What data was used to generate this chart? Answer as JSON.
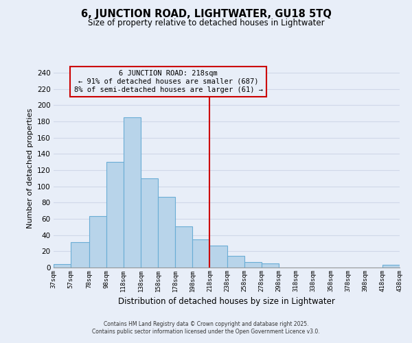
{
  "title": "6, JUNCTION ROAD, LIGHTWATER, GU18 5TQ",
  "subtitle": "Size of property relative to detached houses in Lightwater",
  "xlabel": "Distribution of detached houses by size in Lightwater",
  "ylabel": "Number of detached properties",
  "bin_edges": [
    37,
    57,
    78,
    98,
    118,
    138,
    158,
    178,
    198,
    218,
    238,
    258,
    278,
    298,
    318,
    338,
    358,
    378,
    398,
    418,
    438
  ],
  "bin_counts": [
    4,
    31,
    63,
    130,
    185,
    110,
    87,
    51,
    35,
    27,
    14,
    7,
    5,
    0,
    0,
    0,
    0,
    0,
    0,
    3
  ],
  "bar_color": "#b8d4ea",
  "bar_edge_color": "#6aadd5",
  "property_size": 218,
  "vline_color": "#cc0000",
  "annotation_box_edge": "#cc0000",
  "annotation_title": "6 JUNCTION ROAD: 218sqm",
  "annotation_line1": "← 91% of detached houses are smaller (687)",
  "annotation_line2": "8% of semi-detached houses are larger (61) →",
  "ylim": [
    0,
    245
  ],
  "yticks": [
    0,
    20,
    40,
    60,
    80,
    100,
    120,
    140,
    160,
    180,
    200,
    220,
    240
  ],
  "tick_labels": [
    "37sqm",
    "57sqm",
    "78sqm",
    "98sqm",
    "118sqm",
    "138sqm",
    "158sqm",
    "178sqm",
    "198sqm",
    "218sqm",
    "238sqm",
    "258sqm",
    "278sqm",
    "298sqm",
    "318sqm",
    "338sqm",
    "358sqm",
    "378sqm",
    "398sqm",
    "418sqm",
    "438sqm"
  ],
  "background_color": "#e8eef8",
  "grid_color": "#d0d8e8",
  "footer_line1": "Contains HM Land Registry data © Crown copyright and database right 2025.",
  "footer_line2": "Contains public sector information licensed under the Open Government Licence v3.0."
}
